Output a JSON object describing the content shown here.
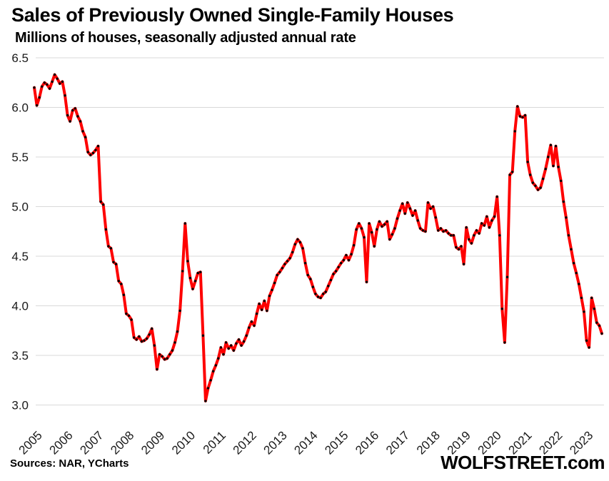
{
  "header": {
    "title": "Sales of Previously Owned Single-Family Houses",
    "subtitle": "Millions of houses, seasonally adjusted annual rate"
  },
  "footer": {
    "sources": "Sources: NAR, YCharts",
    "brand": "WOLFSTREET.com"
  },
  "chart_data": {
    "type": "line",
    "title": "Sales of Previously Owned Single-Family Houses",
    "subtitle": "Millions of houses, seasonally adjusted annual rate",
    "ylabel": "Millions of houses, seasonally adjusted annual rate",
    "xlabel": "",
    "frequency": "monthly",
    "start": "2005-01",
    "end": "2023-07",
    "ylim": [
      3.0,
      6.5
    ],
    "ytick_step": 0.5,
    "ytick_labels": [
      "3.0",
      "3.5",
      "4.0",
      "4.5",
      "5.0",
      "5.5",
      "6.0",
      "6.5"
    ],
    "xtick_years": [
      "2005",
      "2006",
      "2007",
      "2008",
      "2009",
      "2010",
      "2011",
      "2012",
      "2013",
      "2014",
      "2015",
      "2016",
      "2017",
      "2018",
      "2019",
      "2020",
      "2021",
      "2022",
      "2023"
    ],
    "grid": true,
    "grid_color": "#d9d9d9",
    "line_color": "#fe0000",
    "marker_color": "#000000",
    "legend_position": "none",
    "series": [
      {
        "name": "Single-family house sales (millions, SAAR)",
        "values": [
          6.2,
          6.02,
          6.1,
          6.21,
          6.25,
          6.23,
          6.19,
          6.26,
          6.33,
          6.29,
          6.24,
          6.26,
          6.12,
          5.92,
          5.86,
          5.97,
          5.99,
          5.91,
          5.86,
          5.76,
          5.7,
          5.55,
          5.52,
          5.54,
          5.57,
          5.61,
          5.05,
          5.02,
          4.77,
          4.6,
          4.58,
          4.44,
          4.42,
          4.25,
          4.22,
          4.11,
          3.92,
          3.9,
          3.86,
          3.68,
          3.66,
          3.69,
          3.64,
          3.65,
          3.67,
          3.71,
          3.77,
          3.6,
          3.36,
          3.51,
          3.49,
          3.46,
          3.47,
          3.51,
          3.55,
          3.63,
          3.74,
          3.95,
          4.35,
          4.83,
          4.45,
          4.28,
          4.17,
          4.25,
          4.33,
          4.34,
          3.7,
          3.04,
          3.17,
          3.25,
          3.34,
          3.4,
          3.47,
          3.58,
          3.51,
          3.63,
          3.57,
          3.6,
          3.55,
          3.62,
          3.66,
          3.6,
          3.64,
          3.7,
          3.78,
          3.84,
          3.8,
          3.92,
          4.02,
          3.96,
          4.05,
          3.95,
          4.1,
          4.16,
          4.23,
          4.31,
          4.34,
          4.38,
          4.42,
          4.45,
          4.48,
          4.54,
          4.62,
          4.67,
          4.64,
          4.58,
          4.43,
          4.31,
          4.27,
          4.19,
          4.12,
          4.09,
          4.08,
          4.12,
          4.14,
          4.2,
          4.26,
          4.32,
          4.35,
          4.39,
          4.43,
          4.46,
          4.51,
          4.46,
          4.52,
          4.61,
          4.77,
          4.83,
          4.78,
          4.69,
          4.24,
          4.83,
          4.74,
          4.6,
          4.77,
          4.85,
          4.8,
          4.82,
          4.85,
          4.67,
          4.72,
          4.78,
          4.88,
          4.96,
          5.03,
          4.93,
          5.04,
          4.98,
          4.91,
          4.96,
          4.86,
          4.78,
          4.76,
          4.75,
          5.04,
          4.98,
          5.0,
          4.89,
          4.76,
          4.78,
          4.75,
          4.76,
          4.73,
          4.71,
          4.71,
          4.59,
          4.57,
          4.6,
          4.42,
          4.79,
          4.67,
          4.63,
          4.71,
          4.76,
          4.73,
          4.83,
          4.81,
          4.9,
          4.79,
          4.86,
          4.9,
          5.1,
          4.71,
          3.97,
          3.63,
          4.29,
          5.32,
          5.35,
          5.76,
          6.01,
          5.91,
          5.9,
          5.92,
          5.45,
          5.32,
          5.24,
          5.21,
          5.17,
          5.19,
          5.28,
          5.38,
          5.5,
          5.62,
          5.41,
          5.61,
          5.4,
          5.26,
          5.05,
          4.89,
          4.71,
          4.57,
          4.43,
          4.33,
          4.22,
          4.08,
          3.94,
          3.65,
          3.58,
          4.08,
          3.97,
          3.83,
          3.8,
          3.72
        ]
      }
    ]
  }
}
